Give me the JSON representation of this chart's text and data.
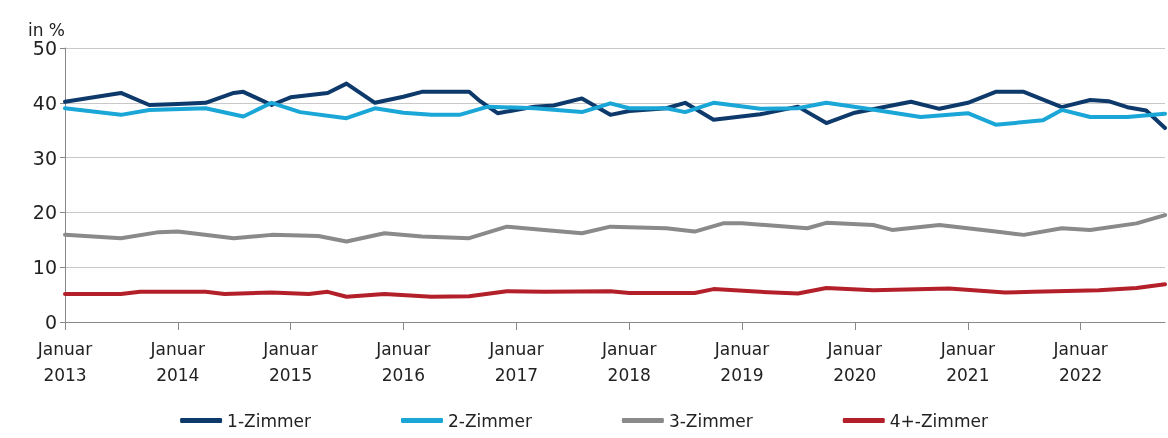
{
  "chart_data": {
    "type": "line",
    "ylabel": "in %",
    "xlim": [
      "2013-01",
      "2022-10"
    ],
    "ylim": [
      0,
      50
    ],
    "yticks": [
      0,
      10,
      20,
      30,
      40,
      50
    ],
    "xticks": [
      {
        "value": "2013-01",
        "label": "Januar\n2013"
      },
      {
        "value": "2014-01",
        "label": "Januar\n2014"
      },
      {
        "value": "2015-01",
        "label": "Januar\n2015"
      },
      {
        "value": "2016-01",
        "label": "Januar\n2016"
      },
      {
        "value": "2017-01",
        "label": "Januar\n2017"
      },
      {
        "value": "2018-01",
        "label": "Januar\n2018"
      },
      {
        "value": "2019-01",
        "label": "Januar\n2019"
      },
      {
        "value": "2020-01",
        "label": "Januar\n2020"
      },
      {
        "value": "2021-01",
        "label": "Januar\n2021"
      },
      {
        "value": "2022-01",
        "label": "Januar\n2022"
      }
    ],
    "grid": "y",
    "legend": "bottom",
    "marker": "none",
    "line_style": "solid",
    "series": [
      {
        "name": "1-Zimmer",
        "color": "#0d3a6b",
        "x": [
          "2013-01",
          "2013-07",
          "2013-10",
          "2014-01",
          "2014-04",
          "2014-07",
          "2014-08",
          "2014-11",
          "2015-01",
          "2015-05",
          "2015-07",
          "2015-10",
          "2016-01",
          "2016-03",
          "2016-08",
          "2016-09",
          "2016-11",
          "2017-03",
          "2017-05",
          "2017-08",
          "2017-11",
          "2018-01",
          "2018-05",
          "2018-07",
          "2018-10",
          "2019-03",
          "2019-07",
          "2019-10",
          "2020-01",
          "2020-07",
          "2020-10",
          "2021-01",
          "2021-04",
          "2021-07",
          "2021-11",
          "2022-02",
          "2022-04",
          "2022-06",
          "2022-08",
          "2022-10"
        ],
        "values": [
          40.2,
          41.8,
          39.6,
          39.8,
          40,
          41.8,
          42,
          39.6,
          41,
          41.8,
          43.5,
          40,
          41.1,
          42,
          42,
          40.5,
          38.1,
          39.3,
          39.5,
          40.8,
          37.8,
          38.5,
          39,
          40,
          36.9,
          37.9,
          39.3,
          36.3,
          38.2,
          40.2,
          38.9,
          40,
          42,
          42,
          39.2,
          40.5,
          40.3,
          39.2,
          38.6,
          35.4
        ]
      },
      {
        "name": "2-Zimmer",
        "color": "#1aa6d6",
        "x": [
          "2013-01",
          "2013-07",
          "2013-10",
          "2014-04",
          "2014-08",
          "2014-11",
          "2015-02",
          "2015-07",
          "2015-10",
          "2016-01",
          "2016-04",
          "2016-07",
          "2016-10",
          "2017-03",
          "2017-08",
          "2017-11",
          "2018-01",
          "2018-05",
          "2018-07",
          "2018-10",
          "2019-03",
          "2019-07",
          "2019-10",
          "2020-02",
          "2020-08",
          "2021-01",
          "2021-04",
          "2021-09",
          "2021-11",
          "2022-02",
          "2022-06",
          "2022-10"
        ],
        "values": [
          39,
          37.8,
          38.7,
          39,
          37.5,
          40,
          38.3,
          37.2,
          39,
          38.2,
          37.8,
          37.8,
          39.3,
          39,
          38.3,
          39.9,
          39,
          39,
          38.3,
          40,
          38.9,
          39,
          40,
          39,
          37.4,
          38.1,
          36,
          36.8,
          38.7,
          37.4,
          37.4,
          38
        ]
      },
      {
        "name": "3-Zimmer",
        "color": "#8a8a8a",
        "x": [
          "2013-01",
          "2013-07",
          "2013-11",
          "2014-01",
          "2014-07",
          "2014-11",
          "2015-04",
          "2015-07",
          "2015-11",
          "2016-03",
          "2016-08",
          "2016-12",
          "2017-04",
          "2017-08",
          "2017-11",
          "2018-05",
          "2018-08",
          "2018-11",
          "2019-01",
          "2019-08",
          "2019-10",
          "2020-03",
          "2020-05",
          "2020-10",
          "2021-04",
          "2021-07",
          "2021-11",
          "2022-02",
          "2022-07",
          "2022-10"
        ],
        "values": [
          15.9,
          15.3,
          16.4,
          16.5,
          15.3,
          15.9,
          15.7,
          14.7,
          16.2,
          15.6,
          15.3,
          17.4,
          16.8,
          16.2,
          17.4,
          17.1,
          16.5,
          18,
          18,
          17.1,
          18.1,
          17.7,
          16.8,
          17.7,
          16.5,
          15.9,
          17.1,
          16.8,
          18,
          19.5
        ]
      },
      {
        "name": "4+-Zimmer",
        "color": "#b3202a",
        "x": [
          "2013-01",
          "2013-07",
          "2013-09",
          "2014-04",
          "2014-06",
          "2014-11",
          "2015-03",
          "2015-05",
          "2015-07",
          "2015-11",
          "2016-04",
          "2016-08",
          "2016-12",
          "2017-04",
          "2017-11",
          "2018-01",
          "2018-08",
          "2018-10",
          "2019-03",
          "2019-07",
          "2019-10",
          "2020-03",
          "2020-11",
          "2021-05",
          "2021-08",
          "2022-03",
          "2022-07",
          "2022-10"
        ],
        "values": [
          5.1,
          5.1,
          5.5,
          5.5,
          5.1,
          5.4,
          5.1,
          5.5,
          4.6,
          5.1,
          4.6,
          4.7,
          5.6,
          5.5,
          5.6,
          5.3,
          5.3,
          6,
          5.5,
          5.2,
          6.2,
          5.8,
          6.1,
          5.4,
          5.5,
          5.8,
          6.2,
          6.9
        ]
      }
    ]
  }
}
